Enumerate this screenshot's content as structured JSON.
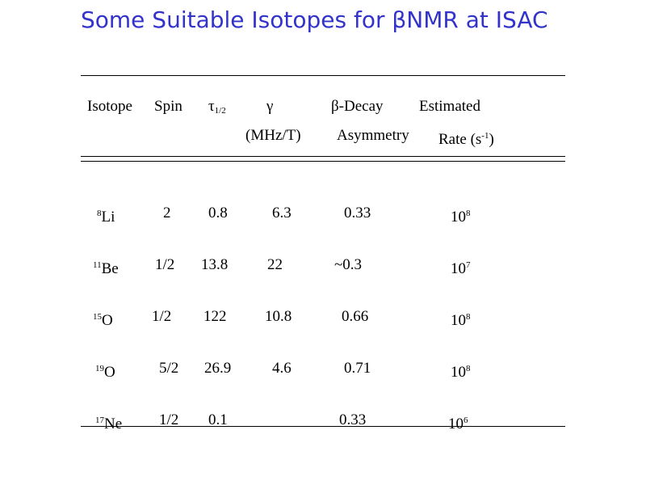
{
  "title": "Some Suitable Isotopes for βNMR at ISAC",
  "table": {
    "header": {
      "isotope": "Isotope",
      "spin": "Spin",
      "halflife": {
        "base": "τ",
        "sub": "1/2"
      },
      "gamma": "γ",
      "gamma_unit": "(MHz/T)",
      "decay": "β-Decay",
      "decay_2": "Asymmetry",
      "rate": "Estimated",
      "rate_2": {
        "base": "Rate (s",
        "sup": "-1",
        "tail": ")"
      }
    },
    "rows": [
      {
        "isotope": {
          "mass": "8",
          "symbol": "Li"
        },
        "spin": "2",
        "halflife": "0.8",
        "gamma": "6.3",
        "asymmetry": "0.33",
        "rate": {
          "base": "10",
          "exp": "8"
        }
      },
      {
        "isotope": {
          "mass": "11",
          "symbol": "Be"
        },
        "spin": "1/2",
        "halflife": "13.8",
        "gamma": "22",
        "asymmetry": "~0.3",
        "rate": {
          "base": "10",
          "exp": "7"
        }
      },
      {
        "isotope": {
          "mass": "15",
          "symbol": "O"
        },
        "spin": "1/2",
        "halflife": "122",
        "gamma": "10.8",
        "asymmetry": "0.66",
        "rate": {
          "base": "10",
          "exp": "8"
        }
      },
      {
        "isotope": {
          "mass": "19",
          "symbol": "O"
        },
        "spin": "5/2",
        "halflife": "26.9",
        "gamma": "4.6",
        "asymmetry": "0.71",
        "rate": {
          "base": "10",
          "exp": "8"
        }
      },
      {
        "isotope": {
          "mass": "17",
          "symbol": "Ne"
        },
        "spin": "1/2",
        "halflife": "0.1",
        "asymmetry": "0.33",
        "rate": {
          "base": "10",
          "exp": "6"
        }
      }
    ]
  }
}
